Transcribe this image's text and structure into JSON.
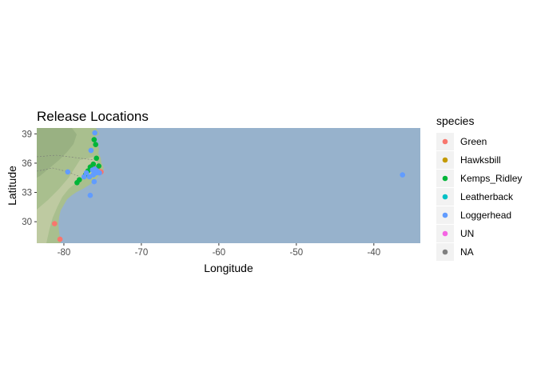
{
  "chart_data": {
    "type": "scatter",
    "title": "Release Locations",
    "xlabel": "Longitude",
    "ylabel": "Latitude",
    "xlim": [
      -83.5,
      -34.0
    ],
    "ylim": [
      27.8,
      39.6
    ],
    "xticks": [
      -80,
      -70,
      -60,
      -50,
      -40
    ],
    "yticks": [
      30,
      33,
      36,
      39
    ],
    "grid": false,
    "background": "map-tiles",
    "legend": {
      "title": "species",
      "position": "right",
      "entries": [
        {
          "label": "Green",
          "color": "#F8766D"
        },
        {
          "label": "Hawksbill",
          "color": "#C49A00"
        },
        {
          "label": "Kemps_Ridley",
          "color": "#00B538"
        },
        {
          "label": "Leatherback",
          "color": "#00C1C6"
        },
        {
          "label": "Loggerhead",
          "color": "#619CFF"
        },
        {
          "label": "UN",
          "color": "#F564E3"
        },
        {
          "label": "NA",
          "color": "#808080"
        }
      ]
    },
    "series": [
      {
        "name": "Green",
        "color": "#F8766D",
        "points": [
          [
            -81.2,
            29.8
          ],
          [
            -80.5,
            28.2
          ],
          [
            -76.0,
            35.5
          ],
          [
            -75.6,
            35.3
          ],
          [
            -75.2,
            35.1
          ],
          [
            -76.4,
            35.7
          ]
        ]
      },
      {
        "name": "Kemps_Ridley",
        "color": "#00B538",
        "points": [
          [
            -76.1,
            38.4
          ],
          [
            -75.9,
            37.9
          ],
          [
            -75.8,
            36.5
          ],
          [
            -76.6,
            35.6
          ],
          [
            -76.9,
            35.2
          ],
          [
            -77.2,
            34.8
          ],
          [
            -78.0,
            34.3
          ],
          [
            -78.3,
            34.0
          ],
          [
            -75.5,
            35.7
          ],
          [
            -76.2,
            35.9
          ]
        ]
      },
      {
        "name": "Loggerhead",
        "color": "#619CFF",
        "points": [
          [
            -76.0,
            39.1
          ],
          [
            -76.5,
            37.3
          ],
          [
            -79.5,
            35.1
          ],
          [
            -77.1,
            35.0
          ],
          [
            -76.7,
            34.6
          ],
          [
            -76.1,
            34.1
          ],
          [
            -76.6,
            32.7
          ],
          [
            -76.3,
            35.3
          ],
          [
            -75.8,
            35.0
          ],
          [
            -76.0,
            35.4
          ],
          [
            -75.7,
            35.2
          ],
          [
            -77.4,
            34.6
          ],
          [
            -36.3,
            34.8
          ],
          [
            -76.2,
            34.8
          ],
          [
            -75.4,
            35.0
          ]
        ]
      }
    ]
  }
}
